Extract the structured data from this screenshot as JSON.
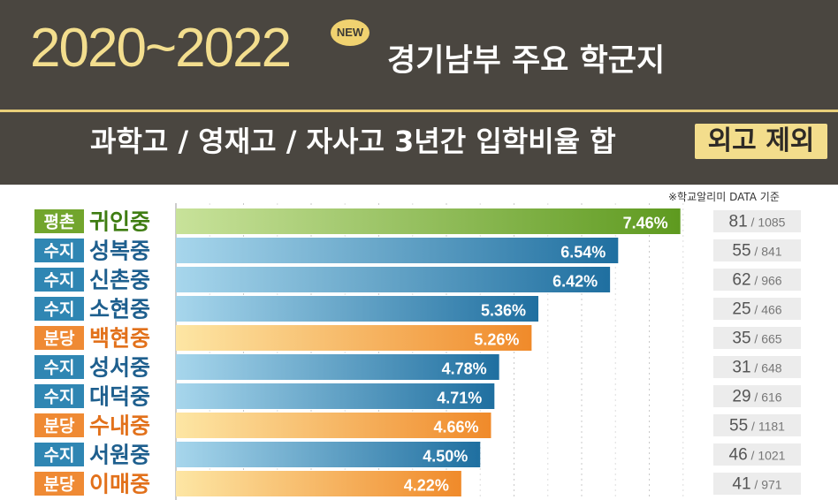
{
  "header": {
    "years": "2020~2022",
    "new_badge": "NEW",
    "title": "경기남부 주요 학군지",
    "subtitle": "과학고 / 영재고 / 자사고 3년간  입학비율 합",
    "subtitle_badge": "외고 제외",
    "source_note": "※학교알리미 DATA 기준"
  },
  "colors": {
    "header_bg": "#4a4640",
    "gold": "#f3de8e",
    "pyeongchon": "#76a832",
    "suji": "#2f86b3",
    "bundang": "#ee8a34"
  },
  "chart_data": {
    "type": "bar",
    "orientation": "horizontal",
    "unit": "%",
    "region_colors": {
      "평촌": {
        "badge": "#72a52d",
        "bar_start": "#c8e29a",
        "bar_end": "#5e9a1f",
        "name": "#3f7d12"
      },
      "수지": {
        "badge": "#2f86b3",
        "bar_start": "#a7d6ec",
        "bar_end": "#1f6fa0",
        "name": "#1e5f8e"
      },
      "분당": {
        "badge": "#ef8a34",
        "bar_start": "#fde6a4",
        "bar_end": "#f08a2a",
        "name": "#e2711b"
      }
    },
    "rows": [
      {
        "region": "평촌",
        "school": "귀인중",
        "value": 7.46,
        "value_label": "7.46%",
        "admitted": "81",
        "total": "1085"
      },
      {
        "region": "수지",
        "school": "성복중",
        "value": 6.54,
        "value_label": "6.54%",
        "admitted": "55",
        "total": "841"
      },
      {
        "region": "수지",
        "school": "신촌중",
        "value": 6.42,
        "value_label": "6.42%",
        "admitted": "62",
        "total": "966"
      },
      {
        "region": "수지",
        "school": "소현중",
        "value": 5.36,
        "value_label": "5.36%",
        "admitted": "25",
        "total": "466"
      },
      {
        "region": "분당",
        "school": "백현중",
        "value": 5.26,
        "value_label": "5.26%",
        "admitted": "35",
        "total": "665"
      },
      {
        "region": "수지",
        "school": "성서중",
        "value": 4.78,
        "value_label": "4.78%",
        "admitted": "31",
        "total": "648"
      },
      {
        "region": "수지",
        "school": "대덕중",
        "value": 4.71,
        "value_label": "4.71%",
        "admitted": "29",
        "total": "616"
      },
      {
        "region": "분당",
        "school": "수내중",
        "value": 4.66,
        "value_label": "4.66%",
        "admitted": "55",
        "total": "1181"
      },
      {
        "region": "수지",
        "school": "서원중",
        "value": 4.5,
        "value_label": "4.50%",
        "admitted": "46",
        "total": "1021"
      },
      {
        "region": "분당",
        "school": "이매중",
        "value": 4.22,
        "value_label": "4.22%",
        "admitted": "41",
        "total": "971"
      }
    ]
  }
}
